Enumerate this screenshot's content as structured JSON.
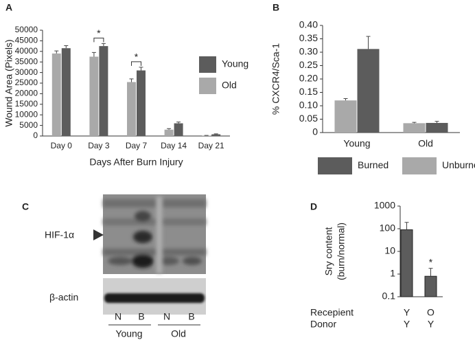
{
  "panels": [
    "A",
    "B",
    "C",
    "D"
  ],
  "chart_data": [
    {
      "type": "bar",
      "ylabel": "Wound Area (Pixels)",
      "xlabel": "Days After Burn Injury",
      "categories": [
        "Day 0",
        "Day 3",
        "Day 7",
        "Day 14",
        "Day 21"
      ],
      "series": [
        {
          "name": "Old",
          "color": "#a9a9a9",
          "values": [
            39000,
            37500,
            25500,
            3000,
            200
          ],
          "errors": [
            1200,
            2000,
            1500,
            500,
            100
          ]
        },
        {
          "name": "Young",
          "color": "#5c5c5c",
          "values": [
            41500,
            42500,
            31000,
            6000,
            800
          ],
          "errors": [
            1200,
            1200,
            1500,
            600,
            200
          ]
        }
      ],
      "ylim": [
        0,
        50000
      ],
      "yticks": [
        0,
        5000,
        10000,
        15000,
        20000,
        25000,
        30000,
        35000,
        40000,
        45000,
        50000
      ],
      "annotations": [
        {
          "label": "*",
          "x": "Day 3"
        },
        {
          "label": "*",
          "x": "Day 7"
        }
      ]
    },
    {
      "type": "bar",
      "ylabel": "% CXCR4/Sca-1",
      "categories": [
        "Young",
        "Old"
      ],
      "series": [
        {
          "name": "Unburned",
          "color": "#a9a9a9",
          "values": [
            0.12,
            0.035
          ],
          "errors": [
            0.007,
            0.003
          ]
        },
        {
          "name": "Burned",
          "color": "#5c5c5c",
          "values": [
            0.312,
            0.036
          ],
          "errors": [
            0.047,
            0.006
          ]
        }
      ],
      "ylim": [
        0,
        0.4
      ],
      "yticks": [
        0,
        0.05,
        {
          "value": 0.1,
          "label": "0.10"
        },
        0.15,
        {
          "value": 0.2,
          "label": "0.20"
        },
        0.25,
        {
          "value": 0.3,
          "label": "0.30"
        },
        0.35,
        {
          "value": 0.4,
          "label": "0.40"
        }
      ]
    },
    {
      "type": "bar",
      "ylabel": [
        "Sry content",
        "(burn/normal)"
      ],
      "log_scale": true,
      "rows": [
        {
          "label": "Recepient",
          "values": [
            "Y",
            "O"
          ]
        },
        {
          "label": "Donor",
          "values": [
            "Y",
            "Y"
          ]
        }
      ],
      "series": [
        {
          "color": "#5c5c5c",
          "values": [
            90,
            0.8
          ],
          "errors": [
            100,
            1
          ]
        }
      ],
      "ylim": [
        0.1,
        1000
      ],
      "yticks": [
        0.1,
        1,
        10,
        100,
        1000
      ],
      "annotations": [
        {
          "label": "*",
          "bar": 1
        }
      ]
    }
  ],
  "blot": {
    "bands": [
      "HIF-1α",
      "β-actin"
    ],
    "lanes": [
      "N",
      "B",
      "N",
      "B"
    ],
    "groups": [
      "Young",
      "Old"
    ]
  }
}
